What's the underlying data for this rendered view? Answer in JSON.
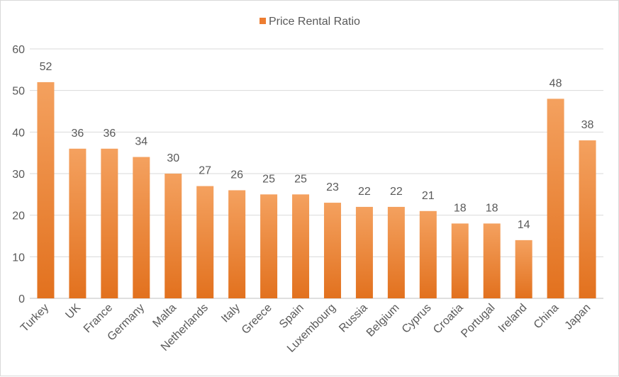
{
  "chart_data": {
    "type": "bar",
    "title": "",
    "xlabel": "",
    "ylabel": "",
    "ylim": [
      0,
      60
    ],
    "yticks": [
      0,
      10,
      20,
      30,
      40,
      50,
      60
    ],
    "grid": true,
    "legend_position": "top-center",
    "series": [
      {
        "name": "Price Rental Ratio",
        "color": "#ED7D31",
        "values": [
          52,
          36,
          36,
          34,
          30,
          27,
          26,
          25,
          25,
          23,
          22,
          22,
          21,
          18,
          18,
          14,
          48,
          38
        ]
      }
    ],
    "categories": [
      "Turkey",
      "UK",
      "France",
      "Germany",
      "Malta",
      "Netherlands",
      "Italy",
      "Greece",
      "Spain",
      "Luxembourg",
      "Russia",
      "Belgium",
      "Cyprus",
      "Croatia",
      "Portugal",
      "Ireland",
      "China",
      "Japan"
    ]
  }
}
